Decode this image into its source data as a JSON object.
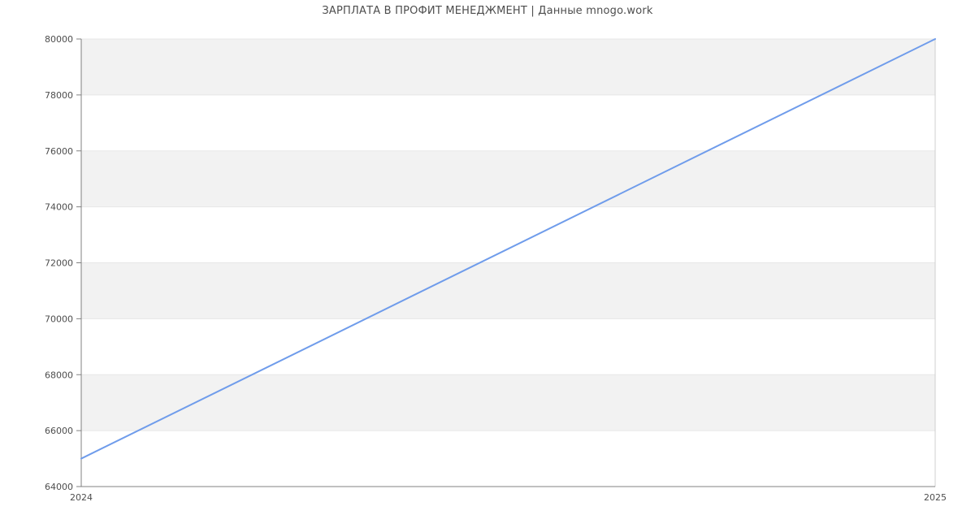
{
  "chart": {
    "title": "ЗАРПЛАТА В ПРОФИТ МЕНЕДЖМЕНТ | Данные mnogo.work"
  },
  "chart_data": {
    "type": "line",
    "title": "ЗАРПЛАТА В ПРОФИТ МЕНЕДЖМЕНТ | Данные mnogo.work",
    "x": [
      2024,
      2025
    ],
    "values": [
      65000,
      80000
    ],
    "xlabel": "",
    "ylabel": "",
    "xlim": [
      2024,
      2025
    ],
    "ylim": [
      64000,
      80000
    ],
    "ytick_interval": 2000,
    "ytick_values": [
      64000,
      66000,
      68000,
      70000,
      72000,
      74000,
      76000,
      78000,
      80000
    ],
    "ytick_labels": [
      "64000",
      "66000",
      "68000",
      "70000",
      "72000",
      "74000",
      "76000",
      "78000",
      "80000"
    ],
    "xticks": [
      {
        "x": 2024,
        "label": "2024"
      },
      {
        "x": 2025,
        "label": "2025"
      }
    ],
    "grid": "alternating-horizontal-bands",
    "legend": "none",
    "colors": {
      "line": "#6f9ceb",
      "band": "#f2f2f2",
      "gridline": "#e7e7e7",
      "axis": "#808080",
      "right_border": "#cfcfcf",
      "text": "#4d4d4d",
      "background": "#ffffff"
    }
  }
}
